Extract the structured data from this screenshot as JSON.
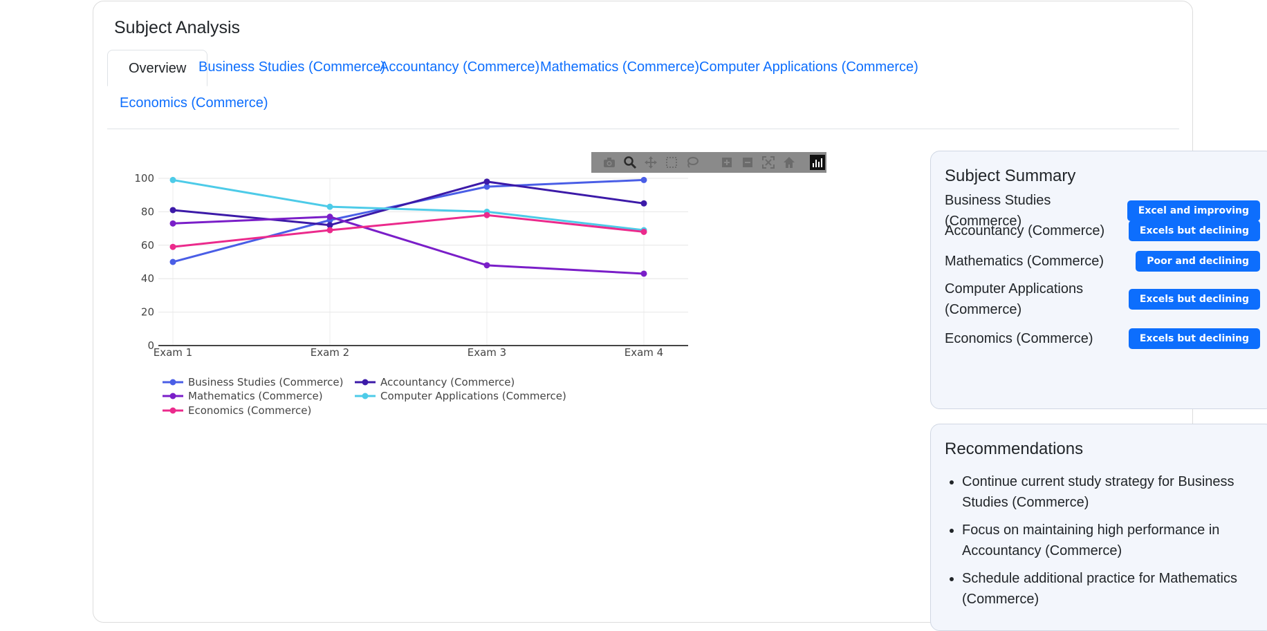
{
  "card": {
    "title": "Subject Analysis"
  },
  "tabs": [
    {
      "label": "Overview",
      "active": true
    },
    {
      "label": "Business Studies (Commerce)"
    },
    {
      "label": "Accountancy (Commerce)"
    },
    {
      "label": "Mathematics (Commerce)"
    },
    {
      "label": "Computer Applications (Commerce)"
    },
    {
      "label": "Economics (Commerce)"
    }
  ],
  "modebar": {
    "icons": [
      "camera-icon",
      "zoom-icon",
      "pan-icon",
      "box-select-icon",
      "lasso-select-icon",
      "zoom-in-icon",
      "zoom-out-icon",
      "autoscale-icon",
      "reset-axes-icon",
      "plotly-logo-icon"
    ]
  },
  "chart_data": {
    "type": "line",
    "categories": [
      "Exam 1",
      "Exam 2",
      "Exam 3",
      "Exam 4"
    ],
    "ylim": [
      0,
      100
    ],
    "yticks": [
      0,
      20,
      40,
      60,
      80,
      100
    ],
    "grid": true,
    "legend_position": "bottom",
    "series": [
      {
        "name": "Business Studies (Commerce)",
        "color": "#4a5ee6",
        "values": [
          50,
          75,
          95,
          99
        ]
      },
      {
        "name": "Accountancy (Commerce)",
        "color": "#3c1aa8",
        "values": [
          81,
          72,
          98,
          85
        ]
      },
      {
        "name": "Mathematics (Commerce)",
        "color": "#7a1ec8",
        "values": [
          73,
          77,
          48,
          43
        ]
      },
      {
        "name": "Computer Applications (Commerce)",
        "color": "#4dcbe8",
        "values": [
          99,
          83,
          80,
          69
        ]
      },
      {
        "name": "Economics (Commerce)",
        "color": "#eb2a8c",
        "values": [
          59,
          69,
          78,
          68
        ]
      }
    ]
  },
  "summary": {
    "title": "Subject Summary",
    "rows": [
      {
        "name": "Business Studies (Commerce)",
        "badge": "Excel and improving"
      },
      {
        "name": "Accountancy (Commerce)",
        "badge": "Excels but declining"
      },
      {
        "name": "Mathematics (Commerce)",
        "badge": "Poor and declining"
      },
      {
        "name": "Computer Applications (Commerce)",
        "badge": "Excels but declining"
      },
      {
        "name": "Economics (Commerce)",
        "badge": "Excels but declining"
      }
    ]
  },
  "recommendations": {
    "title": "Recommendations",
    "items": [
      "Continue current study strategy for Business Studies (Commerce)",
      "Focus on maintaining high performance in Accountancy (Commerce)",
      "Schedule additional practice for Mathematics (Commerce)"
    ]
  }
}
